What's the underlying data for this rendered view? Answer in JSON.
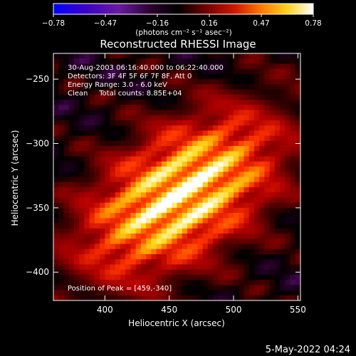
{
  "chart_data": {
    "type": "heatmap",
    "title": "Reconstructed RHESSI Image",
    "xlabel": "Heliocentric X (arcsec)",
    "ylabel": "Heliocentric Y (arcsec)",
    "xlim": [
      360,
      552
    ],
    "ylim": [
      -422,
      -230
    ],
    "x_ticks": [
      400,
      450,
      500,
      550
    ],
    "x_tick_labels": [
      "400",
      "450",
      "500",
      "550"
    ],
    "y_ticks": [
      -250,
      -300,
      -350,
      -400
    ],
    "y_tick_labels": [
      "−250",
      "−300",
      "−350",
      "−400"
    ],
    "colorbar": {
      "range": [
        -0.78,
        0.78
      ],
      "tick_labels": [
        "−0.78",
        "−0.47",
        "−0.16",
        "0.16",
        "0.47",
        "0.78"
      ],
      "unit": "(photons cm⁻² s⁻¹ asec⁻²)"
    },
    "annotations": [
      "30‑Aug‑2003 06:16:40.000 to 06:22:40.000",
      "Detectors: 3F 4F 5F 6F 7F 8F, Att 0",
      "Energy Range: 3.0 ‑ 6.0 keV",
      "Clean     Total counts: 8.85E+04"
    ],
    "peak_label": "Position of Peak = [459,‑340]",
    "peak": {
      "x": 459,
      "y": -340,
      "value": 0.78
    },
    "colormap": [
      "#0000ff",
      "#3a00c8",
      "#6a1aa0",
      "#2a002a",
      "#000000",
      "#5a0000",
      "#b40000",
      "#ff3300",
      "#ff9900",
      "#ffdd22",
      "#ffffff"
    ]
  },
  "footer": {
    "date": "5‑May‑2022 04:24"
  }
}
